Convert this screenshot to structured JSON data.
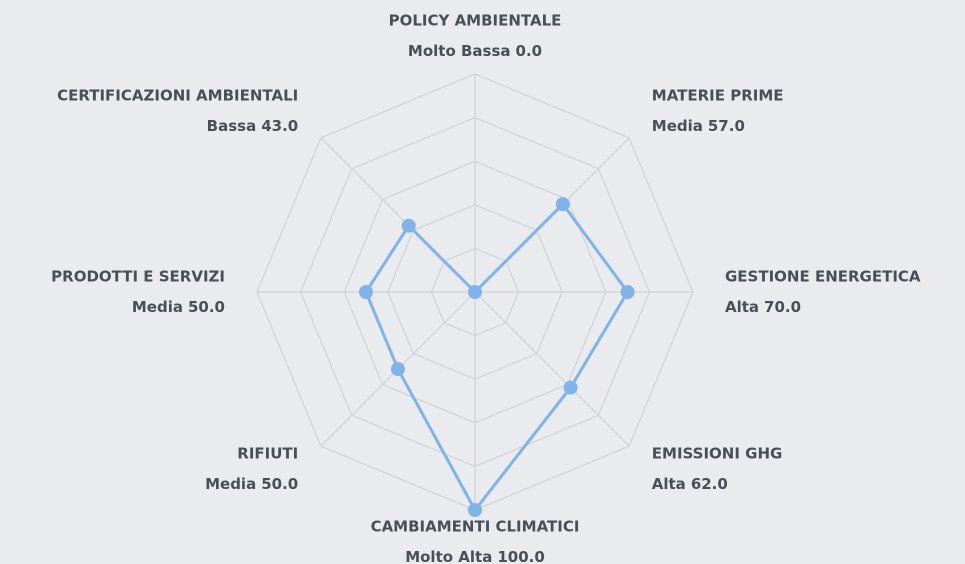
{
  "chart_data": {
    "type": "radar",
    "categories": [
      "POLICY AMBIENTALE",
      "MATERIE PRIME",
      "GESTIONE ENERGETICA",
      "EMISSIONI GHG",
      "CAMBIAMENTI CLIMATICI",
      "RIFIUTI",
      "PRODOTTI E SERVIZI",
      "CERTIFICAZIONI AMBIENTALI"
    ],
    "levels": [
      "Molto Bassa",
      "Media",
      "Alta",
      "Alta",
      "Molto Alta",
      "Media",
      "Media",
      "Bassa"
    ],
    "values": [
      0,
      57,
      70,
      62,
      100,
      50,
      50,
      43
    ],
    "value_labels": [
      "0.0",
      "57.0",
      "70.0",
      "62.0",
      "100.0",
      "50.0",
      "50.0",
      "43.0"
    ],
    "color": "#7fb3ea",
    "rlim": [
      0,
      100
    ],
    "rticks": [
      20,
      40,
      60,
      80,
      100
    ],
    "grid": true
  }
}
